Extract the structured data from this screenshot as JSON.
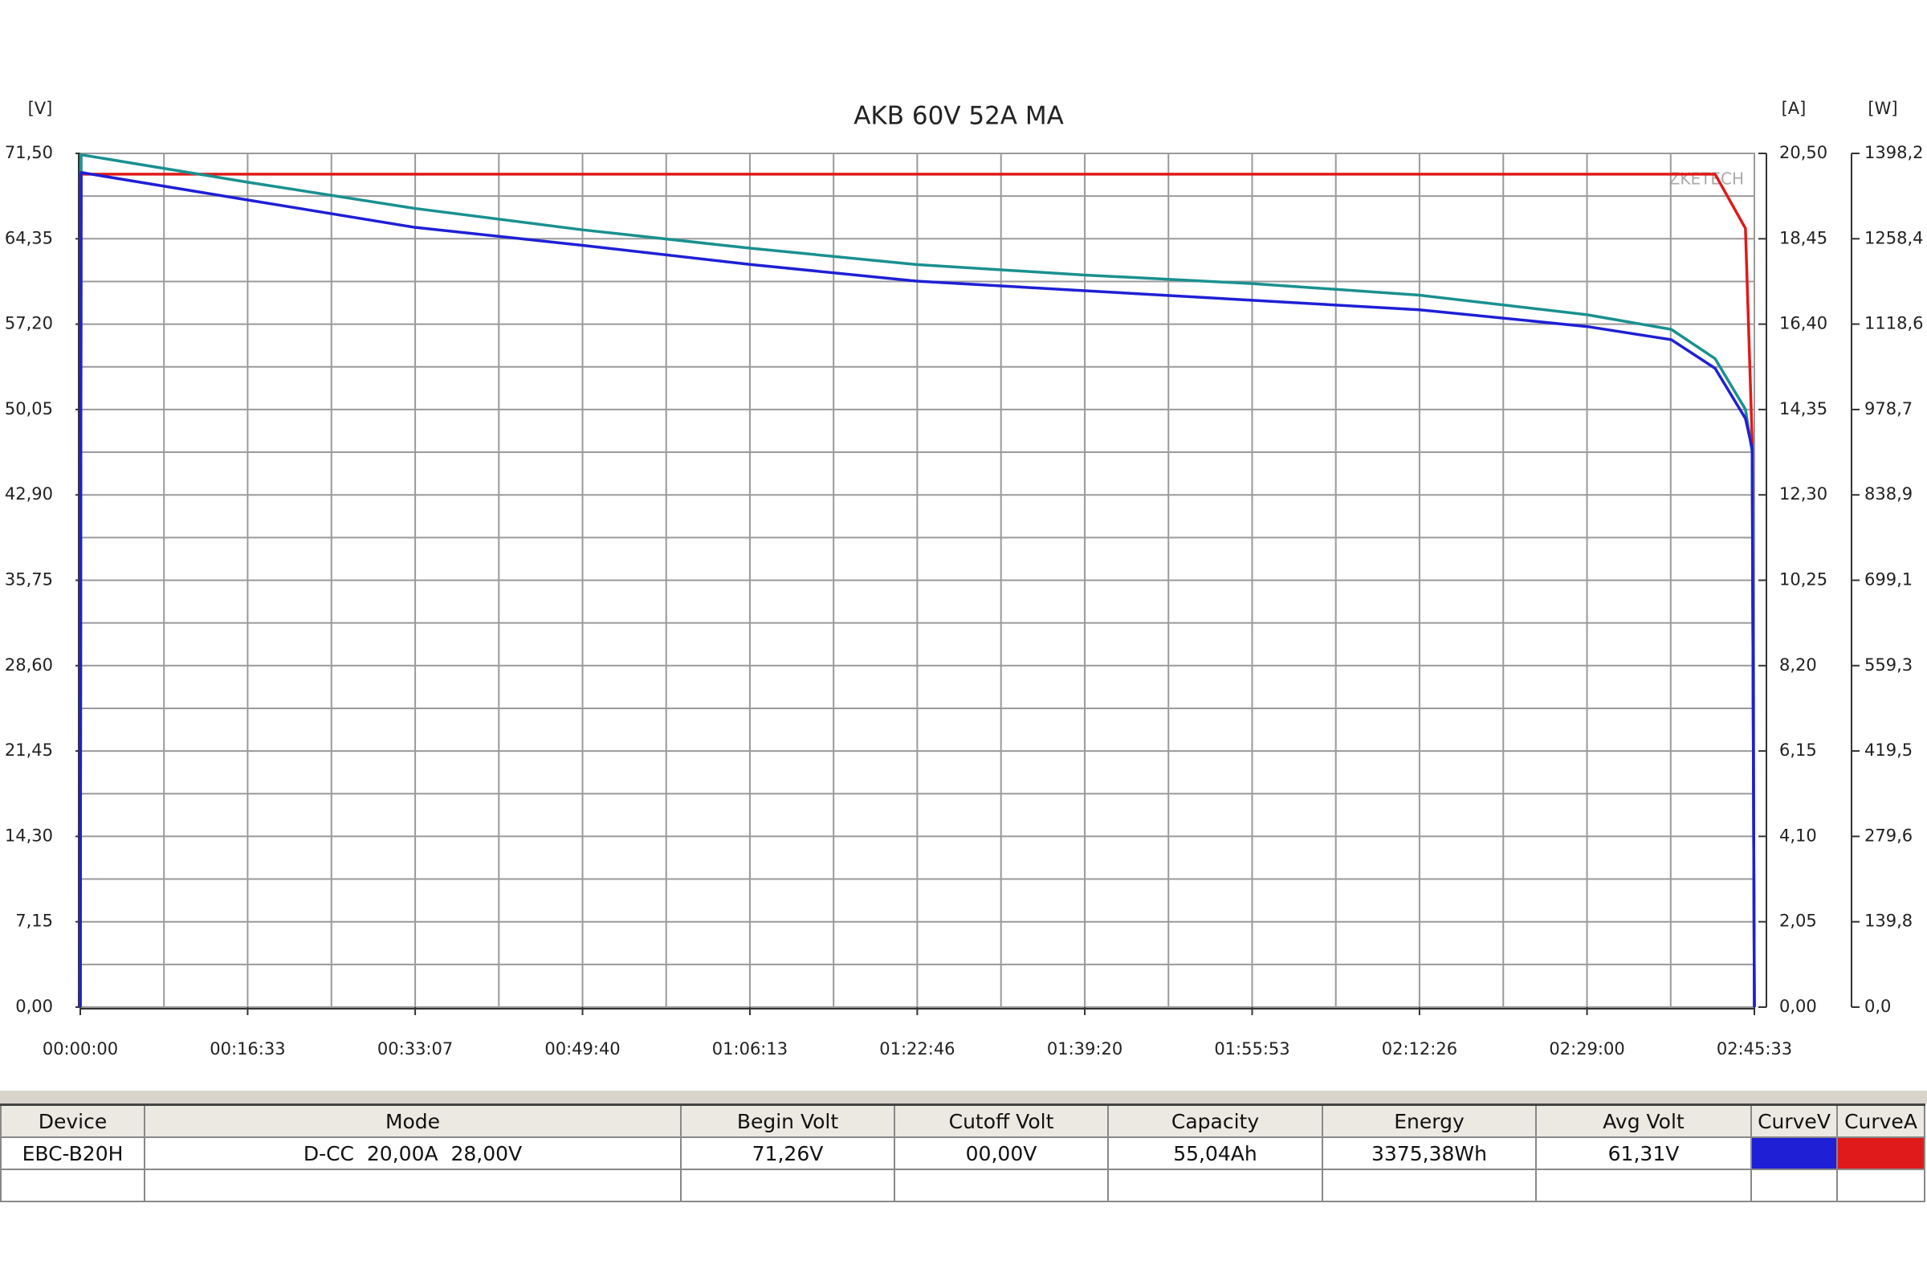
{
  "chart_data": {
    "type": "line",
    "title": "AKB 60V 52A MA",
    "y_label": "[V]",
    "y2_label": "[A]",
    "y3_label": "[W]",
    "annotation": "ZKETECH",
    "x": [
      0,
      5,
      993,
      1987,
      2980,
      3973,
      4966,
      5960,
      6953,
      7946,
      8940,
      9440,
      9700,
      9880,
      9920,
      9933
    ],
    "xlim": [
      0,
      9933
    ],
    "xticks": [
      {
        "value": 0,
        "label": "00:00:00"
      },
      {
        "value": 993,
        "label": "00:16:33"
      },
      {
        "value": 1987,
        "label": "00:33:07"
      },
      {
        "value": 2980,
        "label": "00:49:40"
      },
      {
        "value": 3973,
        "label": "01:06:13"
      },
      {
        "value": 4966,
        "label": "01:22:46"
      },
      {
        "value": 5960,
        "label": "01:39:20"
      },
      {
        "value": 6953,
        "label": "01:55:53"
      },
      {
        "value": 7946,
        "label": "02:12:26"
      },
      {
        "value": 8940,
        "label": "02:29:00"
      },
      {
        "value": 9933,
        "label": "02:45:33"
      }
    ],
    "ylim": [
      0,
      71.5
    ],
    "yticks": [
      {
        "value": 0,
        "label": "0,00"
      },
      {
        "value": 7.15,
        "label": "7,15"
      },
      {
        "value": 14.3,
        "label": "14,30"
      },
      {
        "value": 21.45,
        "label": "21,45"
      },
      {
        "value": 28.6,
        "label": "28,60"
      },
      {
        "value": 35.75,
        "label": "35,75"
      },
      {
        "value": 42.9,
        "label": "42,90"
      },
      {
        "value": 50.05,
        "label": "50,05"
      },
      {
        "value": 57.2,
        "label": "57,20"
      },
      {
        "value": 64.35,
        "label": "64,35"
      },
      {
        "value": 71.5,
        "label": "71,50"
      }
    ],
    "y2lim": [
      0,
      20.5
    ],
    "y2ticks": [
      {
        "value": 0,
        "label": "0,00"
      },
      {
        "value": 2.05,
        "label": "2,05"
      },
      {
        "value": 4.1,
        "label": "4,10"
      },
      {
        "value": 6.15,
        "label": "6,15"
      },
      {
        "value": 8.2,
        "label": "8,20"
      },
      {
        "value": 10.25,
        "label": "10,25"
      },
      {
        "value": 12.3,
        "label": "12,30"
      },
      {
        "value": 14.35,
        "label": "14,35"
      },
      {
        "value": 16.4,
        "label": "16,40"
      },
      {
        "value": 18.45,
        "label": "18,45"
      },
      {
        "value": 20.5,
        "label": "20,50"
      }
    ],
    "y3lim": [
      0,
      1398.2
    ],
    "y3ticks": [
      {
        "value": 0,
        "label": "0,0"
      },
      {
        "value": 139.8,
        "label": "139,8"
      },
      {
        "value": 279.6,
        "label": "279,6"
      },
      {
        "value": 419.5,
        "label": "419,5"
      },
      {
        "value": 559.3,
        "label": "559,3"
      },
      {
        "value": 699.1,
        "label": "699,1"
      },
      {
        "value": 838.9,
        "label": "838,9"
      },
      {
        "value": 978.7,
        "label": "978,7"
      },
      {
        "value": 1118.6,
        "label": "1118,6"
      },
      {
        "value": 1258.4,
        "label": "1258,4"
      },
      {
        "value": 1398.2,
        "label": "1398,2"
      }
    ],
    "grid": true,
    "series": [
      {
        "color": "#e01a1a",
        "axis": "y2",
        "values": [
          0,
          20.0,
          20.0,
          20.0,
          20.0,
          20.0,
          20.0,
          20.0,
          20.0,
          20.0,
          20.0,
          20.0,
          20.0,
          18.7,
          13.6,
          0
        ]
      },
      {
        "color": "#1a9090",
        "axis": "y3",
        "values": [
          0,
          1396,
          1351,
          1308,
          1273,
          1243,
          1216,
          1199,
          1185,
          1166,
          1134,
          1110,
          1062,
          979,
          909,
          0
        ]
      },
      {
        "color": "#1f1fd6",
        "axis": "y",
        "values": [
          0,
          69.9,
          67.6,
          65.3,
          63.8,
          62.2,
          60.8,
          60.0,
          59.2,
          58.4,
          57.0,
          55.9,
          53.5,
          49.3,
          46.8,
          0
        ]
      }
    ]
  },
  "table": {
    "header": [
      "Device",
      "Mode",
      "Begin Volt",
      "Cutoff Volt",
      "Capacity",
      "Energy",
      "Avg Volt",
      "CurveV",
      "CurveA"
    ],
    "rows": [
      [
        "EBC-B20H",
        "D-CC  20,00A  28,00V",
        "71,26V",
        "00,00V",
        "55,04Ah",
        "3375,38Wh",
        "61,31V"
      ]
    ]
  }
}
